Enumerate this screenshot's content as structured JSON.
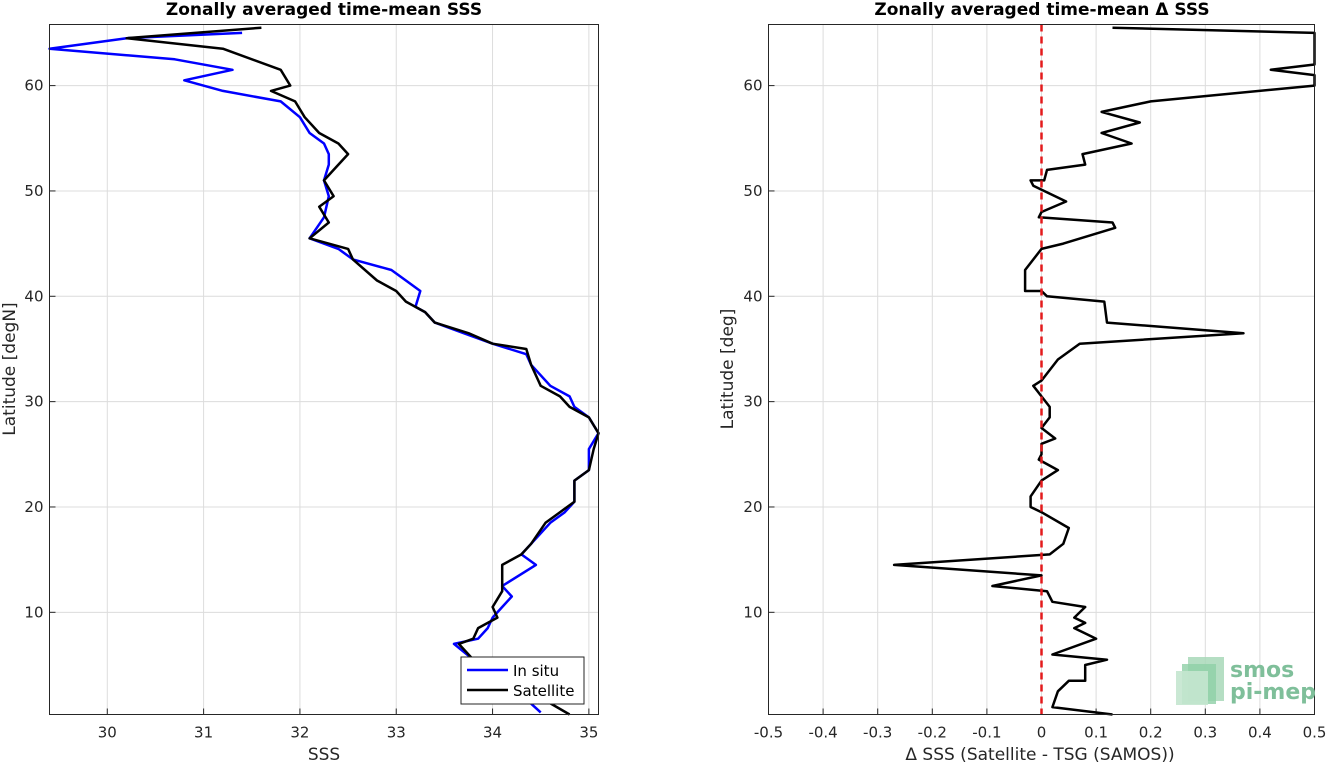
{
  "chart_data": [
    {
      "type": "line",
      "title": "Zonally averaged time-mean SSS",
      "xlabel": "SSS",
      "ylabel": "Latitude [degN]",
      "xlim": [
        29.4,
        35.1
      ],
      "ylim": [
        0.3,
        65.8
      ],
      "xticks": [
        30,
        31,
        32,
        33,
        34,
        35
      ],
      "yticks": [
        10,
        20,
        30,
        40,
        50,
        60
      ],
      "grid": true,
      "legend": "bottom-right",
      "series": [
        {
          "name": "In situ",
          "color": "#0000ff",
          "x": [
            34.5,
            34.2,
            33.8,
            33.6,
            33.85,
            33.95,
            34.0,
            34.1,
            34.2,
            34.1,
            34.45,
            34.3,
            34.4,
            34.6,
            34.75,
            34.85,
            34.85,
            35.0,
            35.0,
            35.1,
            35.0,
            34.85,
            34.8,
            34.6,
            34.4,
            34.35,
            34.0,
            33.7,
            33.4,
            33.3,
            33.2,
            33.25,
            33.1,
            32.95,
            32.55,
            32.4,
            32.1,
            32.25,
            32.3,
            32.25,
            32.3,
            32.3,
            32.25,
            32.1,
            32.0,
            31.8,
            31.2,
            30.8,
            31.3,
            30.7,
            29.4,
            30.2,
            31.4
          ],
          "y": [
            0.5,
            3.0,
            5.5,
            7.0,
            7.5,
            8.5,
            9.5,
            10.5,
            11.5,
            12.5,
            14.5,
            15.5,
            16.5,
            18.5,
            19.5,
            20.5,
            22.5,
            23.5,
            25.5,
            27.0,
            28.5,
            29.5,
            30.5,
            31.5,
            33.5,
            34.5,
            35.5,
            36.5,
            37.5,
            38.5,
            39.0,
            40.5,
            41.5,
            42.5,
            43.5,
            44.5,
            45.5,
            47.5,
            49.5,
            51.0,
            52.5,
            53.5,
            54.5,
            55.5,
            57.0,
            58.5,
            59.5,
            60.5,
            61.5,
            62.5,
            63.5,
            64.5,
            65.0
          ]
        },
        {
          "name": "Satellite",
          "color": "#000000",
          "x": [
            34.8,
            34.1,
            33.8,
            33.65,
            33.8,
            33.85,
            34.05,
            34.0,
            34.1,
            34.1,
            34.1,
            34.3,
            34.4,
            34.55,
            34.7,
            34.85,
            34.85,
            35.0,
            35.05,
            35.1,
            35.0,
            34.8,
            34.7,
            34.5,
            34.4,
            34.35,
            34.0,
            33.75,
            33.4,
            33.3,
            33.1,
            33.0,
            32.8,
            32.55,
            32.5,
            32.1,
            32.3,
            32.2,
            32.35,
            32.25,
            32.35,
            32.5,
            32.4,
            32.2,
            32.05,
            31.95,
            31.7,
            31.9,
            31.8,
            31.2,
            30.2,
            31.6
          ],
          "y": [
            0.3,
            4.0,
            5.5,
            7.0,
            7.5,
            8.5,
            9.5,
            10.5,
            12.0,
            13.5,
            14.5,
            15.5,
            16.5,
            18.5,
            19.5,
            20.5,
            22.5,
            23.5,
            25.5,
            27.0,
            28.5,
            29.5,
            30.5,
            31.5,
            33.5,
            35.0,
            35.5,
            36.5,
            37.5,
            38.5,
            39.5,
            40.5,
            41.5,
            43.5,
            44.5,
            45.5,
            47.0,
            48.5,
            49.5,
            51.0,
            52.0,
            53.5,
            54.5,
            55.5,
            57.0,
            58.5,
            59.5,
            60.0,
            61.5,
            63.5,
            64.5,
            65.5
          ]
        }
      ]
    },
    {
      "type": "line",
      "title": "Zonally averaged time-mean Δ SSS",
      "xlabel": "Δ SSS (Satellite - TSG (SAMOS))",
      "ylabel": "Latitude [deg]",
      "xlim": [
        -0.5,
        0.5
      ],
      "ylim": [
        0.3,
        65.8
      ],
      "xticks": [
        -0.5,
        -0.4,
        -0.3,
        -0.2,
        -0.1,
        0,
        0.1,
        0.2,
        0.3,
        0.4,
        0.5
      ],
      "yticks": [
        10,
        20,
        30,
        40,
        50,
        60
      ],
      "grid": true,
      "zero_line": {
        "x": 0,
        "color": "#e41a1c",
        "style": "dashed"
      },
      "series": [
        {
          "color": "#000000",
          "x": [
            0.13,
            0.02,
            0.03,
            0.05,
            0.08,
            0.08,
            0.12,
            0.02,
            0.1,
            0.06,
            0.08,
            0.06,
            0.08,
            0.02,
            0.01,
            -0.09,
            0.0,
            -0.27,
            0.015,
            0.04,
            0.05,
            0.0,
            -0.02,
            -0.02,
            0.0,
            0.03,
            -0.005,
            0.0,
            0.0,
            0.025,
            0.0,
            0.015,
            0.015,
            0.0,
            -0.015,
            0.0,
            0.03,
            0.07,
            0.37,
            0.12,
            0.115,
            0.01,
            0.0,
            -0.03,
            -0.03,
            0.0,
            0.04,
            0.135,
            0.13,
            -0.005,
            0.0,
            0.045,
            -0.015,
            -0.02,
            0.005,
            0.01,
            0.08,
            0.075,
            0.165,
            0.11,
            0.18,
            0.11,
            0.2,
            0.5,
            0.5,
            0.42,
            0.5,
            0.5,
            0.13
          ],
          "y": [
            0.3,
            1.0,
            2.5,
            3.5,
            3.5,
            5.0,
            5.5,
            6.0,
            7.5,
            8.5,
            9.0,
            9.5,
            10.5,
            11.0,
            12.0,
            12.5,
            13.5,
            14.5,
            15.5,
            16.5,
            18.0,
            19.5,
            20.0,
            21.0,
            22.5,
            23.5,
            24.5,
            25.0,
            26.0,
            26.5,
            27.5,
            28.5,
            29.5,
            30.5,
            31.5,
            32.0,
            34.0,
            35.5,
            36.5,
            37.5,
            39.5,
            40.0,
            40.5,
            40.5,
            42.5,
            44.5,
            45.0,
            46.5,
            47.0,
            47.5,
            48.0,
            49.0,
            50.5,
            51.0,
            51.0,
            52.0,
            52.5,
            53.5,
            54.5,
            55.5,
            56.5,
            57.5,
            58.5,
            60.0,
            61.0,
            61.5,
            62.0,
            65.0,
            65.5
          ]
        }
      ]
    }
  ],
  "logo": {
    "line1": "smos",
    "line2": "pi-mep"
  }
}
